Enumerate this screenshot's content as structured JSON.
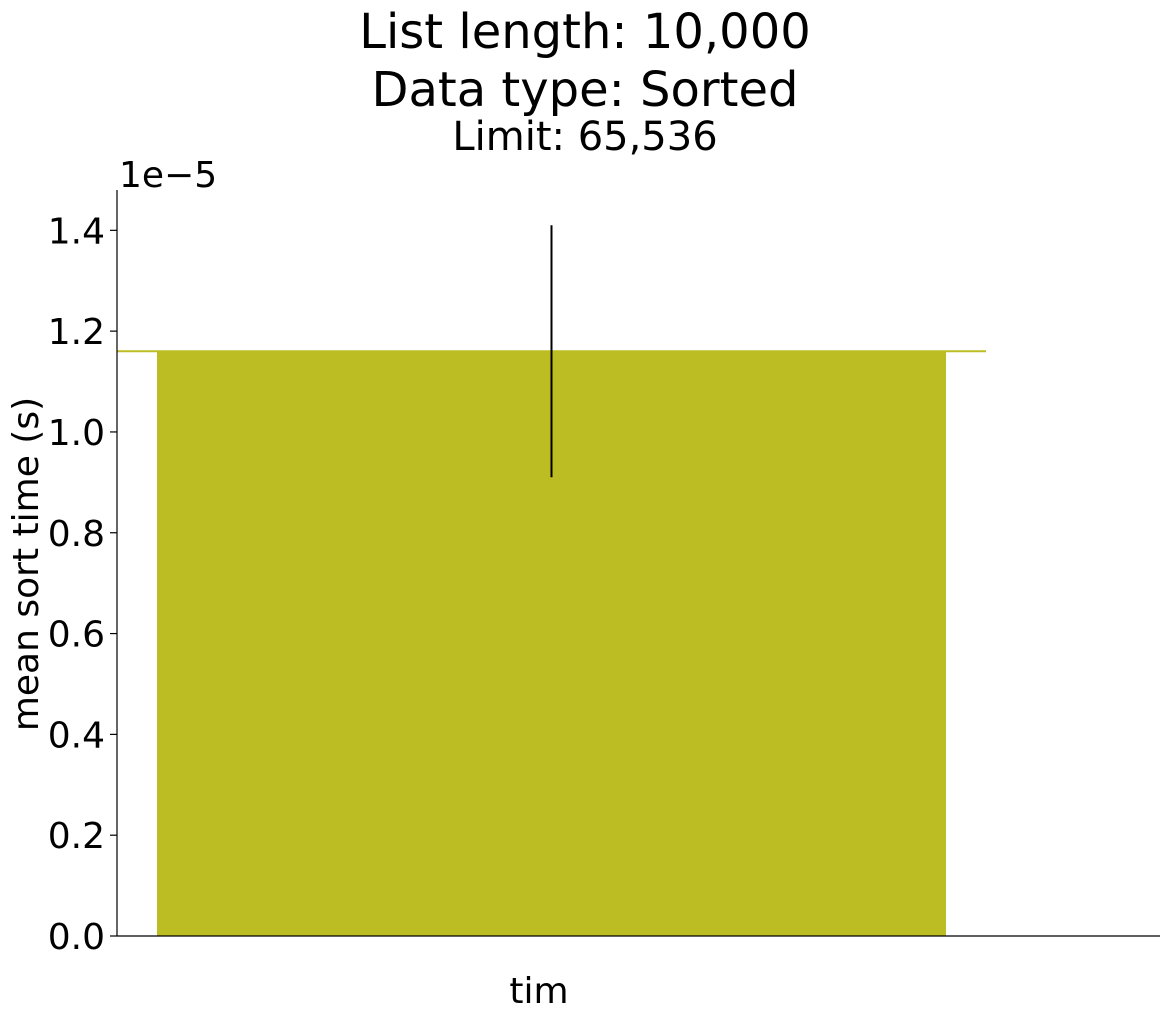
{
  "chart_data": {
    "type": "bar",
    "title": "List length: 10,000",
    "subtitle": "Data type: Sorted",
    "subtitle2": "Limit: 65,536",
    "categories": [
      "tim"
    ],
    "series": [
      {
        "values": [
          1.16e-05
        ],
        "error": [
          2.5e-06
        ],
        "color": "#bcbd22"
      }
    ],
    "reference_line": {
      "value": 1.16e-05,
      "color": "#bcbd22"
    },
    "xlabel": "",
    "ylabel": "mean sort time (s)",
    "y_offset_label": "1e−5",
    "ylim": [
      0,
      1.48e-05
    ],
    "yticks": [
      0,
      2e-06,
      4e-06,
      6e-06,
      8e-06,
      1e-05,
      1.2e-05,
      1.4e-05
    ],
    "ytick_labels": [
      "0.0",
      "0.2",
      "0.4",
      "0.6",
      "0.8",
      "1.0",
      "1.2",
      "1.4"
    ],
    "grid": false
  }
}
